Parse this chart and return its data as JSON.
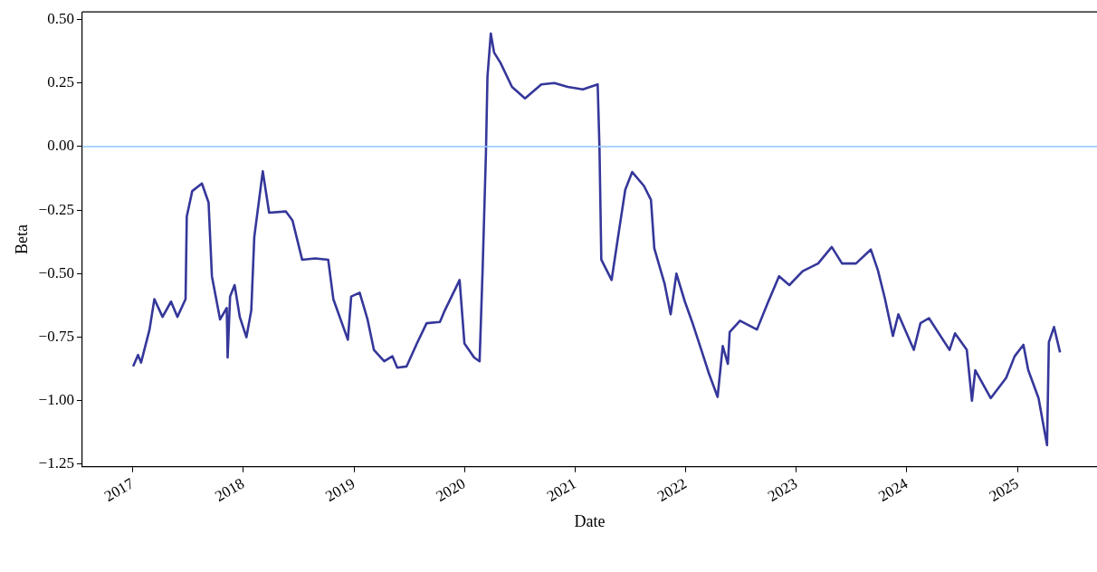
{
  "chart_data": {
    "type": "line",
    "xlabel": "Date",
    "ylabel": "Beta",
    "x": [
      "2017-01-02",
      "2017-01-18",
      "2017-01-28",
      "2017-02-25",
      "2017-03-13",
      "2017-04-09",
      "2017-05-07",
      "2017-05-28",
      "2017-06-24",
      "2017-06-28",
      "2017-07-16",
      "2017-08-17",
      "2017-09-08",
      "2017-09-19",
      "2017-10-16",
      "2017-11-07",
      "2017-11-10",
      "2017-11-18",
      "2017-12-03",
      "2017-12-20",
      "2018-01-11",
      "2018-01-27",
      "2018-02-06",
      "2018-03-06",
      "2018-03-27",
      "2018-05-21",
      "2018-06-12",
      "2018-07-14",
      "2018-08-26",
      "2018-10-08",
      "2018-10-25",
      "2018-12-12",
      "2018-12-23",
      "2019-01-20",
      "2019-02-15",
      "2019-03-08",
      "2019-04-11",
      "2019-05-08",
      "2019-05-24",
      "2019-06-24",
      "2019-07-28",
      "2019-08-29",
      "2019-10-12",
      "2019-10-28",
      "2019-12-16",
      "2020-01-01",
      "2020-02-02",
      "2020-02-20",
      "2020-03-01",
      "2020-03-12",
      "2020-03-17",
      "2020-03-28",
      "2020-04-08",
      "2020-04-29",
      "2020-06-06",
      "2020-07-19",
      "2020-09-11",
      "2020-10-24",
      "2020-12-07",
      "2021-01-26",
      "2021-03-16",
      "2021-03-22",
      "2021-03-28",
      "2021-05-01",
      "2021-05-23",
      "2021-06-15",
      "2021-07-08",
      "2021-08-16",
      "2021-09-08",
      "2021-09-19",
      "2021-10-23",
      "2021-11-12",
      "2021-12-01",
      "2021-12-29",
      "2022-01-22",
      "2022-02-24",
      "2022-03-19",
      "2022-04-16",
      "2022-05-03",
      "2022-05-20",
      "2022-05-26",
      "2022-06-29",
      "2022-08-24",
      "2022-09-27",
      "2022-11-05",
      "2022-12-09",
      "2023-01-22",
      "2023-03-14",
      "2023-04-28",
      "2023-06-01",
      "2023-07-17",
      "2023-09-04",
      "2023-09-27",
      "2023-10-20",
      "2023-11-16",
      "2023-12-04",
      "2024-01-24",
      "2024-02-15",
      "2024-03-14",
      "2024-05-21",
      "2024-06-08",
      "2024-07-17",
      "2024-08-03",
      "2024-08-14",
      "2024-10-04",
      "2024-11-24",
      "2024-12-22",
      "2025-01-20",
      "2025-02-05",
      "2025-03-11",
      "2025-04-08",
      "2025-04-14",
      "2025-05-01",
      "2025-05-21"
    ],
    "series": [
      {
        "color": "#35379a",
        "values": [
          -0.865,
          -0.82,
          -0.85,
          -0.72,
          -0.6,
          -0.67,
          -0.61,
          -0.67,
          -0.6,
          -0.275,
          -0.175,
          -0.145,
          -0.22,
          -0.51,
          -0.68,
          -0.635,
          -0.83,
          -0.59,
          -0.545,
          -0.67,
          -0.75,
          -0.645,
          -0.355,
          -0.097,
          -0.26,
          -0.255,
          -0.29,
          -0.445,
          -0.44,
          -0.445,
          -0.6,
          -0.76,
          -0.59,
          -0.575,
          -0.68,
          -0.8,
          -0.845,
          -0.825,
          -0.87,
          -0.865,
          -0.775,
          -0.695,
          -0.69,
          -0.645,
          -0.525,
          -0.775,
          -0.83,
          -0.845,
          -0.485,
          -0.025,
          0.275,
          0.445,
          0.37,
          0.33,
          0.235,
          0.19,
          0.245,
          0.25,
          0.235,
          0.225,
          0.245,
          -0.007,
          -0.445,
          -0.525,
          -0.35,
          -0.17,
          -0.1,
          -0.155,
          -0.21,
          -0.4,
          -0.54,
          -0.66,
          -0.5,
          -0.61,
          -0.69,
          -0.81,
          -0.895,
          -0.985,
          -0.785,
          -0.855,
          -0.73,
          -0.685,
          -0.72,
          -0.62,
          -0.51,
          -0.545,
          -0.49,
          -0.46,
          -0.395,
          -0.46,
          -0.46,
          -0.405,
          -0.485,
          -0.595,
          -0.745,
          -0.66,
          -0.8,
          -0.695,
          -0.675,
          -0.8,
          -0.735,
          -0.8,
          -1.0,
          -0.88,
          -0.99,
          -0.91,
          -0.825,
          -0.78,
          -0.88,
          -0.99,
          -1.175,
          -0.77,
          -0.71,
          -0.81
        ]
      }
    ],
    "xlim": [
      "2016-07-18",
      "2025-09-20"
    ],
    "xticks": [
      "2017",
      "2018",
      "2019",
      "2020",
      "2021",
      "2022",
      "2023",
      "2024",
      "2025"
    ],
    "ylim": [
      -1.26,
      0.53
    ],
    "yticks": [
      {
        "value": -1.25,
        "label": "−1.25"
      },
      {
        "value": -1.0,
        "label": "−1.00"
      },
      {
        "value": -0.75,
        "label": "−0.75"
      },
      {
        "value": -0.5,
        "label": "−0.50"
      },
      {
        "value": -0.25,
        "label": "−0.25"
      },
      {
        "value": 0,
        "label": "0.00"
      },
      {
        "value": 0.25,
        "label": "0.25"
      },
      {
        "value": 0.5,
        "label": "0.50"
      }
    ],
    "ref_lines": [
      {
        "axis": "y",
        "value": 0,
        "color": "#8ec5ff"
      }
    ],
    "grid": false,
    "legend": false,
    "marker": "none",
    "line_style": "solid"
  }
}
